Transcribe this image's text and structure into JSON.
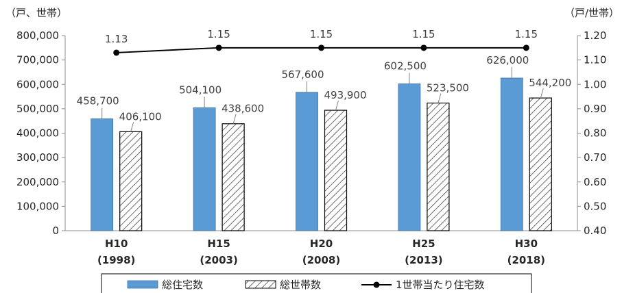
{
  "chart_data": {
    "type": "bar",
    "categories": [
      "H10",
      "H15",
      "H20",
      "H25",
      "H30"
    ],
    "category_sublabels": [
      "(1998)",
      "(2003)",
      "(2008)",
      "(2013)",
      "(2018)"
    ],
    "series": [
      {
        "name": "総住宅数",
        "kind": "bar",
        "axis": "left",
        "color": "#5b9bd5",
        "values": [
          458700,
          504100,
          567600,
          602500,
          626000
        ],
        "labels": [
          "458,700",
          "504,100",
          "567,600",
          "602,500",
          "626,000"
        ]
      },
      {
        "name": "総世帯数",
        "kind": "bar",
        "axis": "left",
        "color": "#ffffff",
        "pattern": "hatch",
        "values": [
          406100,
          438600,
          493900,
          523500,
          544200
        ],
        "labels": [
          "406,100",
          "438,600",
          "493,900",
          "523,500",
          "544,200"
        ]
      },
      {
        "name": "1世帯当たり住宅数",
        "kind": "line",
        "axis": "right",
        "color": "#000000",
        "values": [
          1.13,
          1.15,
          1.15,
          1.15,
          1.15
        ],
        "labels": [
          "1.13",
          "1.15",
          "1.15",
          "1.15",
          "1.15"
        ]
      }
    ],
    "y_left": {
      "unit": "（戸、世帯）",
      "ylim": [
        0,
        800000
      ],
      "ticks": [
        "0",
        "100,000",
        "200,000",
        "300,000",
        "400,000",
        "500,000",
        "600,000",
        "700,000",
        "800,000"
      ]
    },
    "y_right": {
      "unit": "（戸/世帯）",
      "ylim": [
        0.4,
        1.2
      ],
      "ticks": [
        "0.40",
        "0.50",
        "0.60",
        "0.70",
        "0.80",
        "0.90",
        "1.00",
        "1.10",
        "1.20"
      ]
    },
    "grid": false,
    "legend_position": "bottom"
  }
}
